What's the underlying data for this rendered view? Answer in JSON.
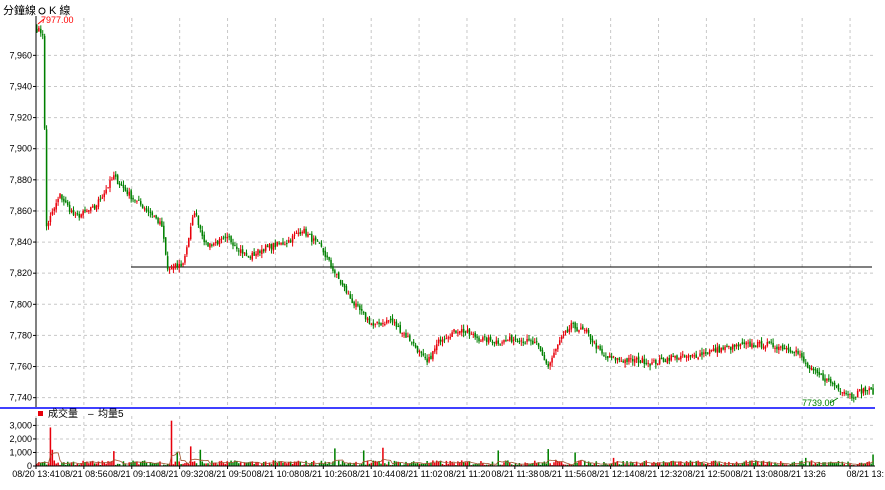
{
  "header": {
    "tab_left": "分鐘線",
    "tab_right": "K 線"
  },
  "colors": {
    "up": "#e8000b",
    "down": "#008000",
    "separator": "#0000ff",
    "grid": "#c8c8c8",
    "hline": "#000000",
    "high_label": "#ff0000",
    "low_label": "#008000"
  },
  "chart_data": [
    {
      "type": "candlestick",
      "x_ticks": [
        "08/20 13:41",
        "08/21 08:56",
        "08/21 09:14",
        "08/21 09:32",
        "08/21 09:50",
        "08/21 10:08",
        "08/21 10:26",
        "08/21 10:44",
        "08/21 11:02",
        "08/21 11:20",
        "08/21 11:38",
        "08/21 11:56",
        "08/21 12:14",
        "08/21 12:32",
        "08/21 12:50",
        "08/21 13:08",
        "08/21 13:26",
        "08/21 13:"
      ],
      "y_ticks": [
        "7,960",
        "7,940",
        "7,920",
        "7,900",
        "7,880",
        "7,860",
        "7,840",
        "7,820",
        "7,800",
        "7,780",
        "7,760",
        "7,740"
      ],
      "ylim": [
        7734,
        7984
      ],
      "grid": true,
      "high_label": "7977.00",
      "low_label": "7739.00",
      "reference_line": 7824,
      "waypoints": [
        [
          0,
          7977
        ],
        [
          3,
          7974
        ],
        [
          5,
          7850
        ],
        [
          12,
          7870
        ],
        [
          20,
          7856
        ],
        [
          30,
          7862
        ],
        [
          40,
          7882
        ],
        [
          44,
          7876
        ],
        [
          50,
          7868
        ],
        [
          60,
          7858
        ],
        [
          65,
          7850
        ],
        [
          68,
          7822
        ],
        [
          76,
          7826
        ],
        [
          82,
          7860
        ],
        [
          88,
          7838
        ],
        [
          100,
          7842
        ],
        [
          110,
          7830
        ],
        [
          118,
          7836
        ],
        [
          130,
          7840
        ],
        [
          138,
          7848
        ],
        [
          148,
          7836
        ],
        [
          156,
          7818
        ],
        [
          165,
          7800
        ],
        [
          175,
          7786
        ],
        [
          184,
          7790
        ],
        [
          195,
          7776
        ],
        [
          203,
          7762
        ],
        [
          210,
          7778
        ],
        [
          220,
          7784
        ],
        [
          230,
          7778
        ],
        [
          240,
          7776
        ],
        [
          250,
          7778
        ],
        [
          260,
          7774
        ],
        [
          266,
          7760
        ],
        [
          272,
          7776
        ],
        [
          278,
          7786
        ],
        [
          286,
          7782
        ],
        [
          295,
          7766
        ],
        [
          305,
          7764
        ],
        [
          315,
          7764
        ],
        [
          320,
          7762
        ],
        [
          330,
          7766
        ],
        [
          340,
          7766
        ],
        [
          350,
          7770
        ],
        [
          360,
          7772
        ],
        [
          370,
          7774
        ],
        [
          380,
          7774
        ],
        [
          390,
          7772
        ],
        [
          395,
          7770
        ],
        [
          402,
          7758
        ],
        [
          410,
          7752
        ],
        [
          418,
          7746
        ],
        [
          424,
          7741
        ],
        [
          430,
          7745
        ],
        [
          435,
          7744
        ]
      ]
    },
    {
      "type": "bar",
      "title": "成交量",
      "legend": [
        "成交量",
        "均量5"
      ],
      "y_ticks": [
        "3,000",
        "2,000",
        "1,000",
        "0"
      ],
      "ylim": [
        0,
        3400
      ],
      "spikes": [
        [
          7,
          2850
        ],
        [
          8,
          1200
        ],
        [
          40,
          1100
        ],
        [
          70,
          3350
        ],
        [
          73,
          1050
        ],
        [
          80,
          1450
        ],
        [
          85,
          1200
        ],
        [
          155,
          1300
        ],
        [
          170,
          1150
        ],
        [
          180,
          1350
        ],
        [
          240,
          1150
        ],
        [
          266,
          1250
        ],
        [
          280,
          1000
        ],
        [
          300,
          600
        ],
        [
          400,
          600
        ],
        [
          435,
          850
        ]
      ]
    }
  ]
}
